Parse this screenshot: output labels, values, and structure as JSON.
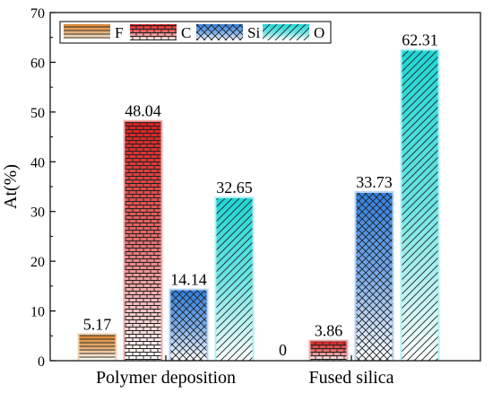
{
  "chart_data": {
    "type": "bar",
    "ylabel": "At(%)",
    "xlabel": "",
    "ylim": [
      0,
      70
    ],
    "yticks": [
      0,
      10,
      20,
      30,
      40,
      50,
      60,
      70
    ],
    "categories": [
      "Polymer deposition",
      "Fused silica"
    ],
    "series": [
      {
        "name": "F",
        "values": [
          5.17,
          0
        ],
        "labels": [
          "5.17",
          "0"
        ],
        "color": "#d9862e",
        "pattern": "horizontal"
      },
      {
        "name": "C",
        "values": [
          48.04,
          3.86
        ],
        "labels": [
          "48.04",
          "3.86"
        ],
        "color": "#d81e1e",
        "pattern": "brick"
      },
      {
        "name": "Si",
        "values": [
          14.14,
          33.73
        ],
        "labels": [
          "14.14",
          "33.73"
        ],
        "color": "#2f7fe0",
        "pattern": "cross"
      },
      {
        "name": "O",
        "values": [
          32.65,
          62.31
        ],
        "labels": [
          "32.65",
          "62.31"
        ],
        "color": "#1fd6d6",
        "pattern": "diagonal"
      }
    ],
    "legend": "top-left",
    "grid": false
  }
}
